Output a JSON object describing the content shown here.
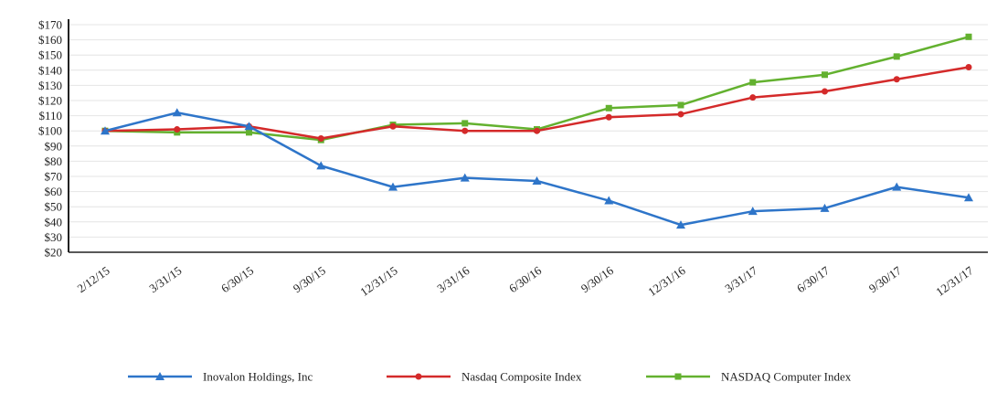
{
  "chart_data": {
    "type": "line",
    "title": "",
    "xlabel": "",
    "ylabel": "",
    "categories": [
      "2/12/15",
      "3/31/15",
      "6/30/15",
      "9/30/15",
      "12/31/15",
      "3/31/16",
      "6/30/16",
      "9/30/16",
      "12/31/16",
      "3/31/17",
      "6/30/17",
      "9/30/17",
      "12/31/17"
    ],
    "ylim": [
      20,
      170
    ],
    "yticks": [
      "$20",
      "$30",
      "$40",
      "$50",
      "$60",
      "$70",
      "$80",
      "$90",
      "$100",
      "$110",
      "$120",
      "$130",
      "$140",
      "$150",
      "$160",
      "$170"
    ],
    "grid": true,
    "legend_position": "bottom",
    "series": [
      {
        "name": "Inovalon Holdings, Inc",
        "color": "#2e75c9",
        "marker": "triangle",
        "values": [
          100,
          112,
          103,
          77,
          63,
          69,
          67,
          54,
          38,
          47,
          49,
          63,
          56
        ]
      },
      {
        "name": "Nasdaq Composite Index",
        "color": "#d42a2a",
        "marker": "circle",
        "values": [
          100,
          101,
          103,
          95,
          103,
          100,
          100,
          109,
          111,
          122,
          126,
          134,
          142
        ]
      },
      {
        "name": "NASDAQ Computer Index",
        "color": "#63b12f",
        "marker": "square",
        "values": [
          100,
          99,
          99,
          94,
          104,
          105,
          101,
          115,
          117,
          132,
          137,
          149,
          162
        ]
      }
    ]
  }
}
